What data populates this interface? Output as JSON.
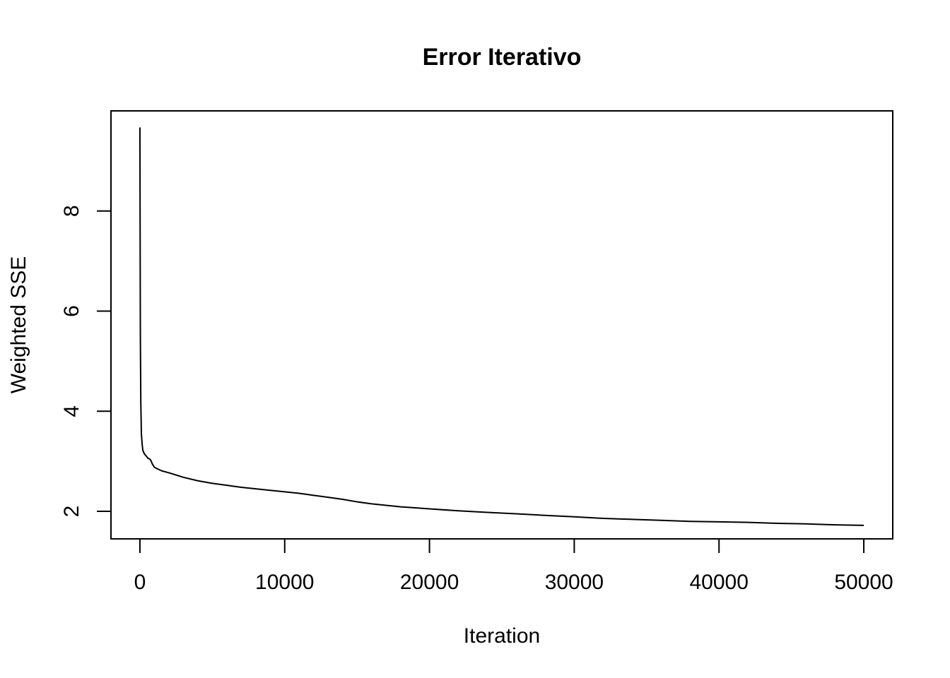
{
  "chart_data": {
    "type": "line",
    "title": "Error Iterativo",
    "xlabel": "Iteration",
    "ylabel": "Weighted SSE",
    "xlim": [
      -2000,
      52000
    ],
    "ylim": [
      1.45,
      10.0
    ],
    "xticks": [
      0,
      10000,
      20000,
      30000,
      40000,
      50000
    ],
    "xtick_labels": [
      "0",
      "10000",
      "20000",
      "30000",
      "40000",
      "50000"
    ],
    "yticks": [
      2,
      4,
      6,
      8
    ],
    "ytick_labels": [
      "2",
      "4",
      "6",
      "8"
    ],
    "grid": false,
    "legend": "none",
    "series": [
      {
        "color": "#000000",
        "x": [
          0,
          10,
          30,
          60,
          100,
          150,
          200,
          300,
          450,
          550,
          650,
          750,
          850,
          1000,
          1200,
          1500,
          2000,
          3000,
          4000,
          5000,
          6000,
          7000,
          8000,
          9000,
          10000,
          11000,
          12000,
          13000,
          14000,
          15000,
          16000,
          17000,
          18000,
          19000,
          20000,
          22000,
          24000,
          26000,
          28000,
          30000,
          32000,
          34000,
          36000,
          38000,
          40000,
          42000,
          44000,
          46000,
          48000,
          50000
        ],
        "y": [
          9.67,
          8.0,
          5.5,
          4.2,
          3.55,
          3.35,
          3.22,
          3.15,
          3.1,
          3.06,
          3.05,
          3.02,
          2.95,
          2.88,
          2.85,
          2.81,
          2.77,
          2.68,
          2.61,
          2.56,
          2.52,
          2.48,
          2.45,
          2.42,
          2.39,
          2.36,
          2.32,
          2.28,
          2.24,
          2.19,
          2.15,
          2.12,
          2.09,
          2.07,
          2.05,
          2.01,
          1.98,
          1.95,
          1.92,
          1.89,
          1.86,
          1.84,
          1.82,
          1.8,
          1.79,
          1.78,
          1.76,
          1.75,
          1.73,
          1.72
        ]
      }
    ]
  }
}
